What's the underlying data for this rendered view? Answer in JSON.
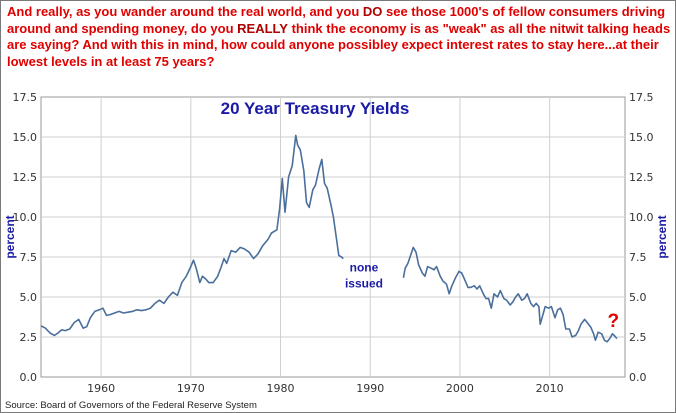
{
  "commentary": {
    "p1": "And really, as you wander around the real world, and you ",
    "em1": "DO",
    "p2": " see those 1000's of fellow consumers driving around and spending money, do you ",
    "em2": "REALLY",
    "p3": " think the economy is as \"weak\" as all the nitwit talking heads are saying? And with this in mind, how could anyone possibley expect interest rates to stay here...at their lowest levels in at least 75 years?"
  },
  "source": "Source: Board of Governors of the Federal Reserve System",
  "colors": {
    "line": "#4a6f9c",
    "commentary": "#e00000",
    "title": "#1a1aa6",
    "grid": "#cfcfcf"
  },
  "chart_data": {
    "type": "line",
    "title": "20 Year Treasury Yields",
    "ylabel_left": "percent",
    "ylabel_right": "percent",
    "xlim": [
      1953.3,
      2018.4
    ],
    "ylim": [
      0,
      17.5
    ],
    "x_ticks": [
      1960,
      1970,
      1980,
      1990,
      2000,
      2010
    ],
    "y_ticks": [
      0.0,
      2.5,
      5.0,
      7.5,
      10.0,
      12.5,
      15.0,
      17.5
    ],
    "grid": true,
    "annotations": [
      {
        "text_line1": "none",
        "text_line2": "issued",
        "x": 1989.3,
        "y": 6.6
      },
      {
        "text": "?",
        "x": 2017.1,
        "y": 3.5
      }
    ],
    "series": [
      {
        "segments": [
          [
            [
              1953.3,
              3.2
            ],
            [
              1953.8,
              3.05
            ],
            [
              1954.3,
              2.75
            ],
            [
              1954.8,
              2.6
            ],
            [
              1955.2,
              2.75
            ],
            [
              1955.6,
              2.95
            ],
            [
              1956.0,
              2.9
            ],
            [
              1956.5,
              3.0
            ],
            [
              1957.0,
              3.4
            ],
            [
              1957.5,
              3.6
            ],
            [
              1958.0,
              3.05
            ],
            [
              1958.4,
              3.15
            ],
            [
              1958.8,
              3.7
            ],
            [
              1959.3,
              4.1
            ],
            [
              1959.8,
              4.2
            ],
            [
              1960.2,
              4.3
            ],
            [
              1960.6,
              3.85
            ],
            [
              1961.0,
              3.9
            ],
            [
              1961.5,
              4.0
            ],
            [
              1962.0,
              4.1
            ],
            [
              1962.5,
              4.0
            ],
            [
              1963.0,
              4.05
            ],
            [
              1963.5,
              4.1
            ],
            [
              1964.0,
              4.2
            ],
            [
              1964.5,
              4.15
            ],
            [
              1965.0,
              4.2
            ],
            [
              1965.5,
              4.3
            ],
            [
              1966.0,
              4.6
            ],
            [
              1966.5,
              4.8
            ],
            [
              1967.0,
              4.6
            ],
            [
              1967.5,
              5.0
            ],
            [
              1968.0,
              5.3
            ],
            [
              1968.5,
              5.1
            ],
            [
              1969.0,
              5.9
            ],
            [
              1969.5,
              6.3
            ],
            [
              1970.0,
              6.9
            ],
            [
              1970.3,
              7.3
            ],
            [
              1970.6,
              6.8
            ],
            [
              1971.0,
              5.9
            ],
            [
              1971.3,
              6.3
            ],
            [
              1971.7,
              6.1
            ],
            [
              1972.0,
              5.9
            ],
            [
              1972.5,
              5.9
            ],
            [
              1973.0,
              6.3
            ],
            [
              1973.4,
              6.9
            ],
            [
              1973.7,
              7.4
            ],
            [
              1974.0,
              7.1
            ],
            [
              1974.5,
              7.9
            ],
            [
              1975.0,
              7.8
            ],
            [
              1975.5,
              8.1
            ],
            [
              1976.0,
              8.0
            ],
            [
              1976.5,
              7.8
            ],
            [
              1977.0,
              7.4
            ],
            [
              1977.5,
              7.7
            ],
            [
              1978.0,
              8.2
            ],
            [
              1978.6,
              8.6
            ],
            [
              1979.0,
              9.0
            ],
            [
              1979.6,
              9.2
            ],
            [
              1979.9,
              10.5
            ],
            [
              1980.2,
              12.4
            ],
            [
              1980.5,
              10.3
            ],
            [
              1980.9,
              12.5
            ],
            [
              1981.3,
              13.2
            ],
            [
              1981.7,
              15.1
            ],
            [
              1981.9,
              14.5
            ],
            [
              1982.2,
              14.2
            ],
            [
              1982.6,
              12.9
            ],
            [
              1982.9,
              10.9
            ],
            [
              1983.2,
              10.6
            ],
            [
              1983.6,
              11.7
            ],
            [
              1983.9,
              12.0
            ],
            [
              1984.3,
              13.0
            ],
            [
              1984.6,
              13.6
            ],
            [
              1984.9,
              12.1
            ],
            [
              1985.2,
              11.8
            ],
            [
              1985.6,
              10.8
            ],
            [
              1985.9,
              10.0
            ],
            [
              1986.2,
              8.8
            ],
            [
              1986.5,
              7.6
            ],
            [
              1986.8,
              7.5
            ],
            [
              1987.0,
              7.4
            ]
          ],
          [
            [
              1993.7,
              6.2
            ],
            [
              1993.9,
              6.8
            ],
            [
              1994.2,
              7.1
            ],
            [
              1994.5,
              7.6
            ],
            [
              1994.8,
              8.1
            ],
            [
              1995.1,
              7.8
            ],
            [
              1995.4,
              7.0
            ],
            [
              1995.8,
              6.5
            ],
            [
              1996.1,
              6.3
            ],
            [
              1996.4,
              6.9
            ],
            [
              1996.8,
              6.8
            ],
            [
              1997.1,
              6.7
            ],
            [
              1997.4,
              6.9
            ],
            [
              1997.8,
              6.3
            ],
            [
              1998.1,
              6.0
            ],
            [
              1998.5,
              5.8
            ],
            [
              1998.8,
              5.2
            ],
            [
              1999.1,
              5.7
            ],
            [
              1999.5,
              6.2
            ],
            [
              1999.9,
              6.6
            ],
            [
              2000.2,
              6.5
            ],
            [
              2000.6,
              6.0
            ],
            [
              2000.9,
              5.6
            ],
            [
              2001.2,
              5.6
            ],
            [
              2001.6,
              5.7
            ],
            [
              2001.9,
              5.5
            ],
            [
              2002.2,
              5.7
            ],
            [
              2002.6,
              5.2
            ],
            [
              2002.9,
              4.9
            ],
            [
              2003.2,
              4.9
            ],
            [
              2003.5,
              4.3
            ],
            [
              2003.8,
              5.2
            ],
            [
              2004.2,
              5.0
            ],
            [
              2004.5,
              5.4
            ],
            [
              2004.9,
              4.9
            ],
            [
              2005.2,
              4.8
            ],
            [
              2005.6,
              4.5
            ],
            [
              2005.9,
              4.7
            ],
            [
              2006.2,
              5.0
            ],
            [
              2006.5,
              5.2
            ],
            [
              2006.9,
              4.8
            ],
            [
              2007.2,
              4.9
            ],
            [
              2007.5,
              5.2
            ],
            [
              2007.9,
              4.6
            ],
            [
              2008.2,
              4.4
            ],
            [
              2008.5,
              4.6
            ],
            [
              2008.8,
              4.4
            ],
            [
              2008.95,
              3.3
            ],
            [
              2009.2,
              3.8
            ],
            [
              2009.5,
              4.4
            ],
            [
              2009.9,
              4.3
            ],
            [
              2010.2,
              4.4
            ],
            [
              2010.6,
              3.7
            ],
            [
              2010.9,
              4.2
            ],
            [
              2011.2,
              4.3
            ],
            [
              2011.5,
              3.9
            ],
            [
              2011.8,
              3.0
            ],
            [
              2012.2,
              3.0
            ],
            [
              2012.5,
              2.5
            ],
            [
              2012.9,
              2.6
            ],
            [
              2013.2,
              2.9
            ],
            [
              2013.5,
              3.3
            ],
            [
              2013.9,
              3.6
            ],
            [
              2014.2,
              3.4
            ],
            [
              2014.6,
              3.1
            ],
            [
              2014.9,
              2.7
            ],
            [
              2015.1,
              2.3
            ],
            [
              2015.4,
              2.8
            ],
            [
              2015.8,
              2.7
            ],
            [
              2016.1,
              2.3
            ],
            [
              2016.4,
              2.2
            ],
            [
              2016.7,
              2.4
            ],
            [
              2017.0,
              2.7
            ],
            [
              2017.2,
              2.6
            ],
            [
              2017.5,
              2.4
            ]
          ]
        ]
      }
    ]
  }
}
